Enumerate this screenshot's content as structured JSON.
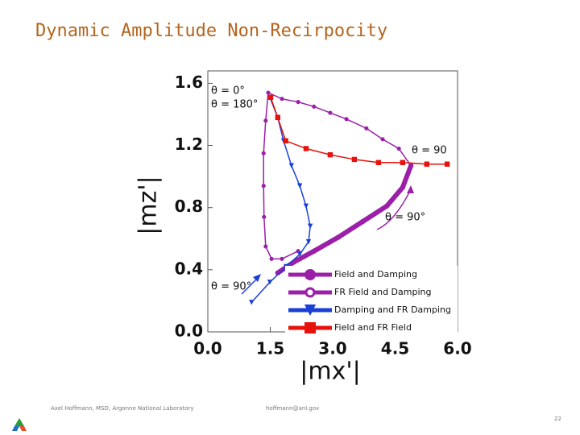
{
  "header": {
    "title": "Dynamic Amplitude Non-Recirpocity"
  },
  "footer": {
    "author": "Axel Hoffmann, MSD, Argonne National Laboratory",
    "email": "hoffmann@anl.gov",
    "page": "22"
  },
  "chart_data": {
    "type": "line",
    "xlabel": "|mx'|",
    "ylabel": "|mz'|",
    "xlim": [
      0,
      6.0
    ],
    "ylim": [
      0,
      1.68
    ],
    "xticks": [
      {
        "value": 0,
        "label": "0.0"
      },
      1.5,
      {
        "value": 3,
        "label": "3.0"
      },
      4.5,
      {
        "value": 6,
        "label": "6.0"
      }
    ],
    "yticks": [
      {
        "value": 0,
        "label": "0.0"
      },
      0.4,
      0.8,
      1.2,
      1.6
    ],
    "annotations": [
      {
        "text": "θ = 0°"
      },
      {
        "text": "θ = 180°"
      },
      {
        "text": "θ = 90"
      },
      {
        "text": "θ = 90°"
      },
      {
        "text": "θ = 90°"
      }
    ],
    "series": [
      {
        "name": "Field and Damping",
        "color": "#9b1fa8",
        "marker": "circle",
        "linewidth": 6,
        "x": [
          4.88,
          4.68,
          4.3,
          3.72,
          3.14,
          2.55,
          2.07,
          1.68
        ],
        "values": [
          1.07,
          0.93,
          0.81,
          0.71,
          0.61,
          0.52,
          0.45,
          0.38
        ]
      },
      {
        "name": "FR Field and Damping",
        "color": "#9b1fa8",
        "marker": "circle-open",
        "linewidth": 1.5,
        "x": [
          2.17,
          1.78,
          1.53,
          1.39,
          1.35,
          1.34,
          1.34,
          1.39,
          1.45,
          1.78,
          2.17,
          2.55,
          2.94,
          3.33,
          3.81,
          4.2,
          4.59,
          4.88
        ],
        "values": [
          0.52,
          0.47,
          0.47,
          0.55,
          0.74,
          0.94,
          1.15,
          1.36,
          1.54,
          1.5,
          1.48,
          1.45,
          1.41,
          1.37,
          1.31,
          1.24,
          1.18,
          1.07
        ]
      },
      {
        "name": "Damping and FR Damping",
        "color": "#1a3fd6",
        "marker": "triangle-down",
        "linewidth": 1.5,
        "x": [
          1.49,
          1.68,
          1.82,
          2.01,
          2.21,
          2.36,
          2.46,
          2.42,
          2.21,
          1.88,
          1.49,
          1.05
        ],
        "values": [
          1.51,
          1.38,
          1.23,
          1.07,
          0.94,
          0.81,
          0.68,
          0.58,
          0.5,
          0.42,
          0.32,
          0.19
        ]
      },
      {
        "name": "Field and FR Field",
        "color": "#e8120c",
        "marker": "square",
        "linewidth": 1.5,
        "x": [
          1.51,
          1.68,
          1.87,
          2.36,
          2.94,
          3.52,
          4.1,
          4.68,
          5.26,
          5.75
        ],
        "values": [
          1.51,
          1.38,
          1.23,
          1.18,
          1.14,
          1.11,
          1.09,
          1.09,
          1.08,
          1.08
        ]
      }
    ]
  }
}
